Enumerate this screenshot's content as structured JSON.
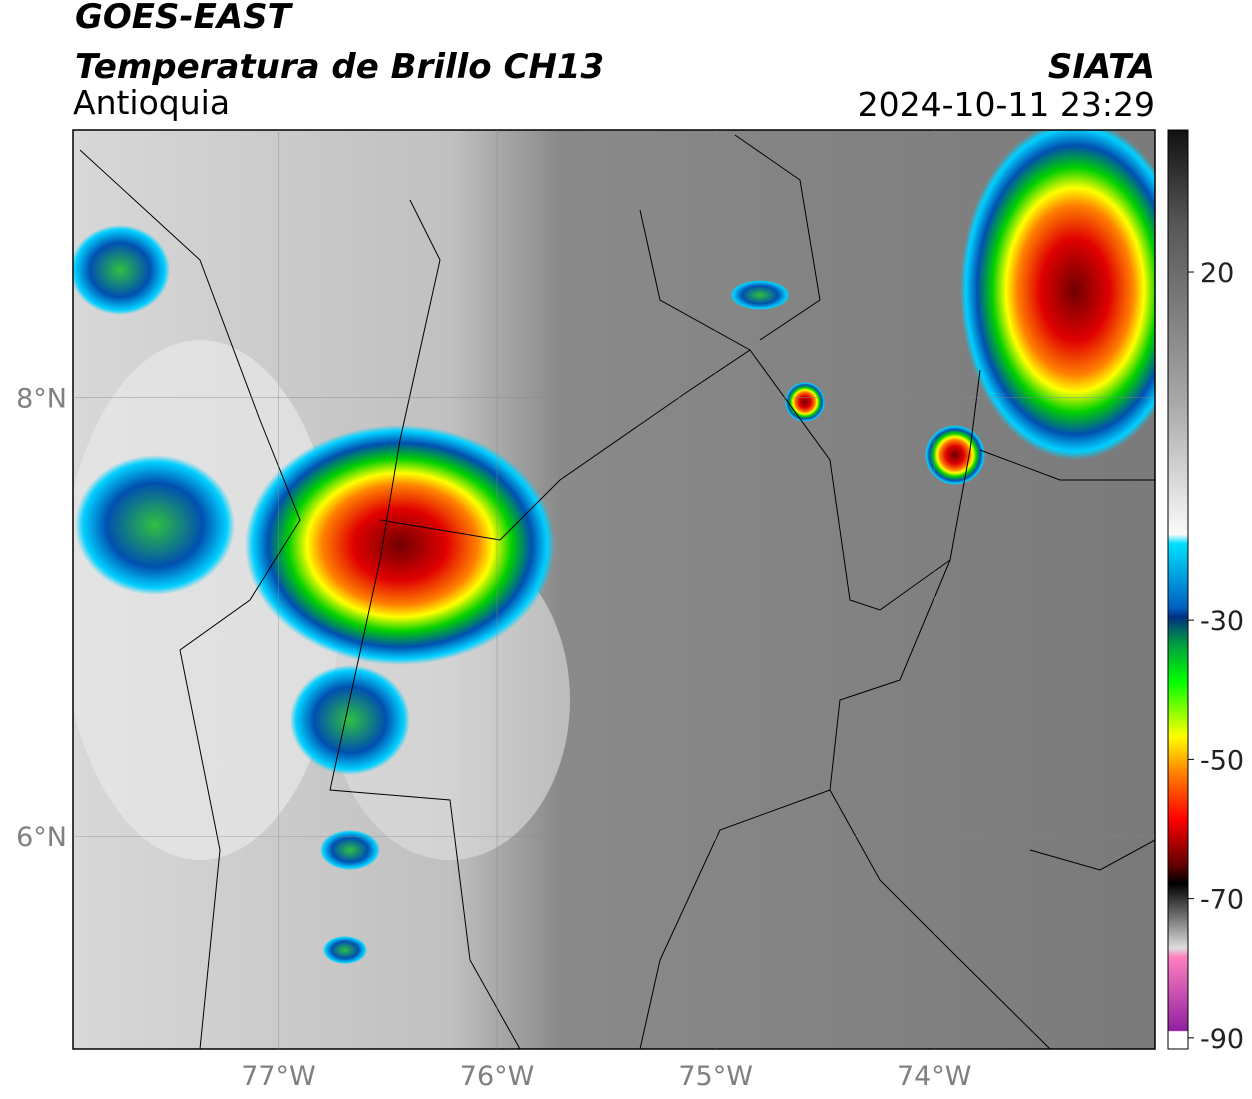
{
  "header": {
    "satellite": "GOES-EAST",
    "product": "Temperatura de Brillo CH13",
    "region": "Antioquia",
    "agency": "SIATA",
    "datetime": "2024-10-11 23:29"
  },
  "map": {
    "lonlim": [
      -77.94,
      -72.99
    ],
    "latlim": [
      5.03,
      9.22
    ],
    "lat_ticks": [
      {
        "value": 8,
        "label": "8°N"
      },
      {
        "value": 6,
        "label": "6°N"
      }
    ],
    "lon_ticks": [
      {
        "value": -77,
        "label": "77°W"
      },
      {
        "value": -76,
        "label": "76°W"
      },
      {
        "value": -75,
        "label": "75°W"
      },
      {
        "value": -74,
        "label": "74°W"
      }
    ]
  },
  "colorbar": {
    "lim": [
      40.4,
      -91.6
    ],
    "ticks": [
      20,
      -30,
      -50,
      -70,
      -90
    ]
  }
}
